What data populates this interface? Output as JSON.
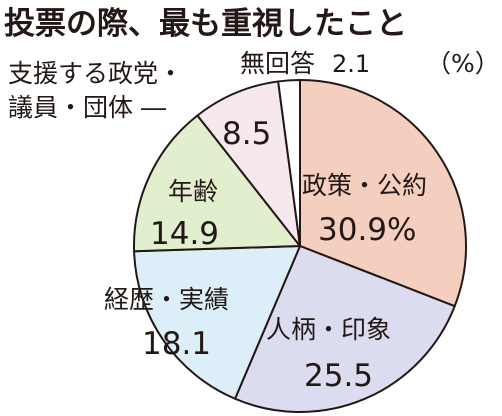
{
  "chart_data": {
    "type": "pie",
    "title": "投票の際、最も重視したこと",
    "unit_label": "（%）",
    "slices": [
      {
        "label": "政策・公約",
        "display": "30.9%",
        "value": 30.9,
        "color": "#f4cfc0"
      },
      {
        "label": "人柄・印象",
        "display": "25.5",
        "value": 25.5,
        "color": "#dcdcf0"
      },
      {
        "label": "経歴・実績",
        "display": "18.1",
        "value": 18.1,
        "color": "#dceef8"
      },
      {
        "label": "年齢",
        "display": "14.9",
        "value": 14.9,
        "color": "#e2efcf"
      },
      {
        "label": "支援する政党・議員・団体",
        "label_lines": [
          "支援する政党・",
          "議員・団体 ―"
        ],
        "display": "8.5",
        "value": 8.5,
        "color": "#f6e8ef"
      },
      {
        "label": "無回答",
        "display": "2.1",
        "value": 2.1,
        "color": "#ffffff"
      }
    ]
  }
}
